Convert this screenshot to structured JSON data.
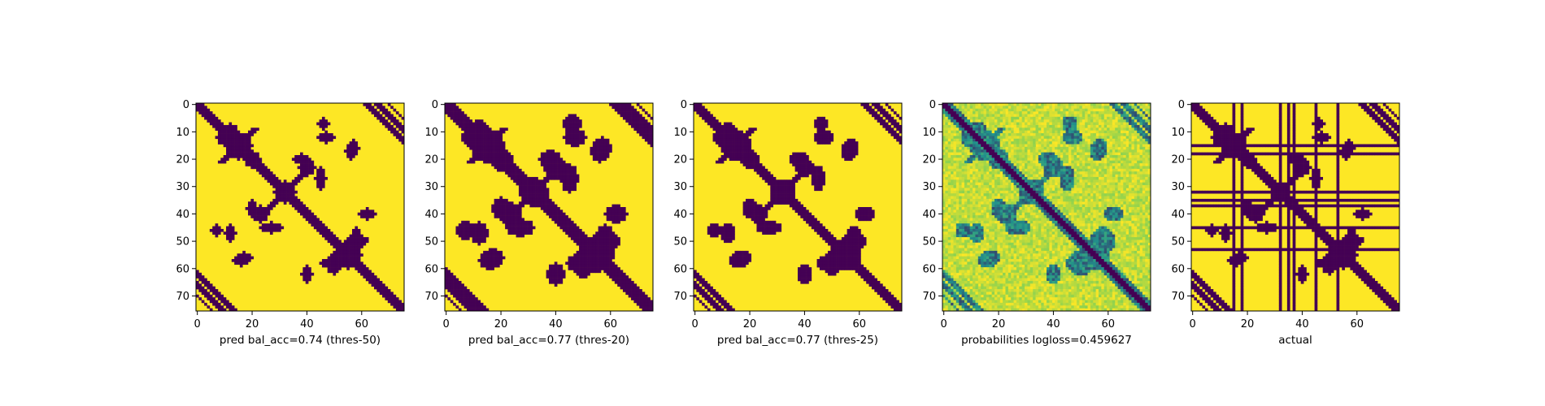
{
  "colors": {
    "low": "#440154",
    "mid_low": "#21918c",
    "mid": "#5ec962",
    "high": "#fde725",
    "axis": "#000000"
  },
  "chart_data": [
    {
      "type": "heatmap",
      "label": "pred bal_acc=0.74 (thres-50)",
      "matrix_size": 76,
      "x_ticks": [
        0,
        20,
        40,
        60
      ],
      "y_ticks": [
        0,
        10,
        20,
        30,
        40,
        50,
        60,
        70
      ],
      "value_range": [
        0,
        1
      ],
      "colormap": "viridis",
      "binary": true,
      "diagonal_width": 2.2,
      "sparsity": "low"
    },
    {
      "type": "heatmap",
      "label": "pred bal_acc=0.77 (thres-20)",
      "matrix_size": 76,
      "x_ticks": [
        0,
        20,
        40,
        60
      ],
      "y_ticks": [
        0,
        10,
        20,
        30,
        40,
        50,
        60,
        70
      ],
      "value_range": [
        0,
        1
      ],
      "colormap": "viridis",
      "binary": true,
      "diagonal_width": 3.2,
      "sparsity": "high"
    },
    {
      "type": "heatmap",
      "label": "pred bal_acc=0.77 (thres-25)",
      "matrix_size": 76,
      "x_ticks": [
        0,
        20,
        40,
        60
      ],
      "y_ticks": [
        0,
        10,
        20,
        30,
        40,
        50,
        60,
        70
      ],
      "value_range": [
        0,
        1
      ],
      "colormap": "viridis",
      "binary": true,
      "diagonal_width": 2.8,
      "sparsity": "mid"
    },
    {
      "type": "heatmap",
      "label": "probabilities logloss=0.459627",
      "matrix_size": 76,
      "x_ticks": [
        0,
        20,
        40,
        60
      ],
      "y_ticks": [
        0,
        10,
        20,
        30,
        40,
        50,
        60,
        70
      ],
      "value_range": [
        0,
        1
      ],
      "colormap": "viridis",
      "binary": false,
      "diagonal_width": 3.0,
      "sparsity": "continuous"
    },
    {
      "type": "heatmap",
      "label": "actual",
      "matrix_size": 76,
      "x_ticks": [
        0,
        20,
        40,
        60
      ],
      "y_ticks": [
        0,
        10,
        20,
        30,
        40,
        50,
        60,
        70
      ],
      "value_range": [
        0,
        1
      ],
      "colormap": "viridis",
      "binary": true,
      "diagonal_width": 2.0,
      "sparsity": "actual",
      "full_rows": [
        15,
        18,
        32,
        35,
        37,
        45,
        53
      ],
      "full_cols": [
        15,
        18,
        32,
        35,
        37,
        45,
        53
      ]
    }
  ]
}
